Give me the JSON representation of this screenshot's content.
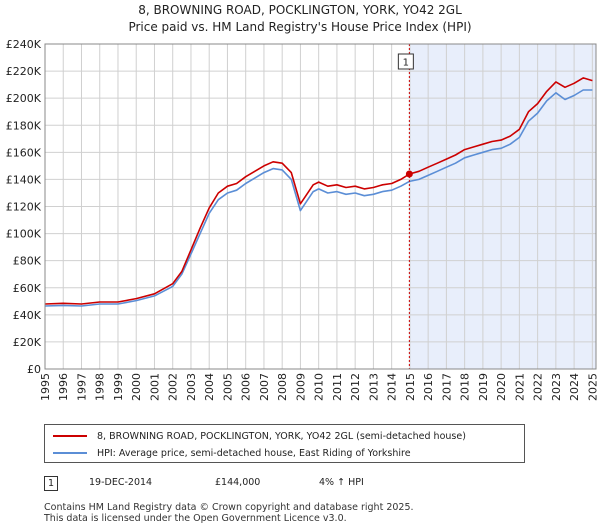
{
  "title_line1": "8, BROWNING ROAD, POCKLINGTON, YORK, YO42 2GL",
  "title_line2": "Price paid vs. HM Land Registry's House Price Index (HPI)",
  "chart_data": {
    "type": "line",
    "title": "8, BROWNING ROAD, POCKLINGTON, YORK, YO42 2GL — Price paid vs. HM Land Registry's House Price Index (HPI)",
    "ylim": [
      0,
      240000
    ],
    "xlim": [
      1995,
      2025.2
    ],
    "y_ticks": [
      0,
      20000,
      40000,
      60000,
      80000,
      100000,
      120000,
      140000,
      160000,
      180000,
      200000,
      220000,
      240000
    ],
    "y_tick_labels": [
      "£0",
      "£20K",
      "£40K",
      "£60K",
      "£80K",
      "£100K",
      "£120K",
      "£140K",
      "£160K",
      "£180K",
      "£200K",
      "£220K",
      "£240K"
    ],
    "x_ticks": [
      1995,
      1996,
      1997,
      1998,
      1999,
      2000,
      2001,
      2002,
      2003,
      2004,
      2005,
      2006,
      2007,
      2008,
      2009,
      2010,
      2011,
      2012,
      2013,
      2014,
      2015,
      2016,
      2017,
      2018,
      2019,
      2020,
      2021,
      2022,
      2023,
      2024,
      2025
    ],
    "x_tick_labels": [
      "1995",
      "1996",
      "1997",
      "1998",
      "1999",
      "2000",
      "2001",
      "2002",
      "2003",
      "2004",
      "2005",
      "2006",
      "2007",
      "2008",
      "2009",
      "2010",
      "2011",
      "2012",
      "2013",
      "2014",
      "2015",
      "2016",
      "2017",
      "2018",
      "2019",
      "2020",
      "2021",
      "2022",
      "2023",
      "2024",
      "2025"
    ],
    "grid": true,
    "shaded_from": 2014.97,
    "series": [
      {
        "name": "8, BROWNING ROAD, POCKLINGTON, YORK, YO42 2GL (semi-detached house)",
        "color": "#cc0000",
        "x": [
          1995.0,
          1996.0,
          1997.0,
          1998.0,
          1999.0,
          2000.0,
          2001.0,
          2002.0,
          2002.5,
          2003.0,
          2003.5,
          2004.0,
          2004.5,
          2005.0,
          2005.5,
          2006.0,
          2006.5,
          2007.0,
          2007.5,
          2008.0,
          2008.5,
          2009.0,
          2009.3,
          2009.7,
          2010.0,
          2010.5,
          2011.0,
          2011.5,
          2012.0,
          2012.5,
          2013.0,
          2013.5,
          2014.0,
          2014.5,
          2014.97,
          2015.5,
          2016.0,
          2016.5,
          2017.0,
          2017.5,
          2018.0,
          2018.5,
          2019.0,
          2019.5,
          2020.0,
          2020.5,
          2021.0,
          2021.5,
          2022.0,
          2022.5,
          2023.0,
          2023.5,
          2024.0,
          2024.5,
          2025.0
        ],
        "values": [
          48000,
          48500,
          48000,
          49500,
          49500,
          52000,
          55500,
          63000,
          72000,
          88000,
          104000,
          119000,
          130000,
          135000,
          137000,
          142000,
          146000,
          150000,
          153000,
          152000,
          145000,
          122000,
          128000,
          136000,
          138000,
          135000,
          136000,
          134000,
          135000,
          133000,
          134000,
          136000,
          137000,
          140000,
          144000,
          146000,
          149000,
          152000,
          155000,
          158000,
          162000,
          164000,
          166000,
          168000,
          169000,
          172000,
          177000,
          190000,
          196000,
          205000,
          212000,
          208000,
          211000,
          215000,
          213000
        ]
      },
      {
        "name": "HPI: Average price, semi-detached house, East Riding of Yorkshire",
        "color": "#5b8ed6",
        "x": [
          1995.0,
          1996.0,
          1997.0,
          1998.0,
          1999.0,
          2000.0,
          2001.0,
          2002.0,
          2002.5,
          2003.0,
          2003.5,
          2004.0,
          2004.5,
          2005.0,
          2005.5,
          2006.0,
          2006.5,
          2007.0,
          2007.5,
          2008.0,
          2008.5,
          2009.0,
          2009.3,
          2009.7,
          2010.0,
          2010.5,
          2011.0,
          2011.5,
          2012.0,
          2012.5,
          2013.0,
          2013.5,
          2014.0,
          2014.5,
          2014.97,
          2015.5,
          2016.0,
          2016.5,
          2017.0,
          2017.5,
          2018.0,
          2018.5,
          2019.0,
          2019.5,
          2020.0,
          2020.5,
          2021.0,
          2021.5,
          2022.0,
          2022.5,
          2023.0,
          2023.5,
          2024.0,
          2024.5,
          2025.0
        ],
        "values": [
          46500,
          47000,
          46500,
          48000,
          48000,
          50500,
          54000,
          61000,
          70000,
          85000,
          100000,
          115000,
          125000,
          130000,
          132000,
          137000,
          141000,
          145000,
          148000,
          147000,
          140000,
          117000,
          123000,
          131000,
          133000,
          130000,
          131000,
          129000,
          130000,
          128000,
          129000,
          131000,
          132000,
          135000,
          138500,
          140000,
          143000,
          146000,
          149000,
          152000,
          156000,
          158000,
          160000,
          162000,
          163000,
          166000,
          171000,
          183000,
          189000,
          198000,
          204000,
          199000,
          202000,
          206000,
          206000
        ]
      }
    ],
    "annotations": [
      {
        "label": "1",
        "x": 2014.97,
        "value": 144000
      }
    ]
  },
  "legend": {
    "items": [
      {
        "label": "8, BROWNING ROAD, POCKLINGTON, YORK, YO42 2GL (semi-detached house)",
        "color": "#cc0000"
      },
      {
        "label": "HPI: Average price, semi-detached house, East Riding of Yorkshire",
        "color": "#5b8ed6"
      }
    ]
  },
  "transaction": {
    "num": "1",
    "date": "19-DEC-2014",
    "price": "£144,000",
    "hpi": "4% ↑ HPI"
  },
  "footer": {
    "line1": "Contains HM Land Registry data © Crown copyright and database right 2025.",
    "line2": "This data is licensed under the Open Government Licence v3.0."
  },
  "colors": {
    "shade": "#e8eefb",
    "grid": "#d0d0d0",
    "marker_line": "#cc0000"
  }
}
